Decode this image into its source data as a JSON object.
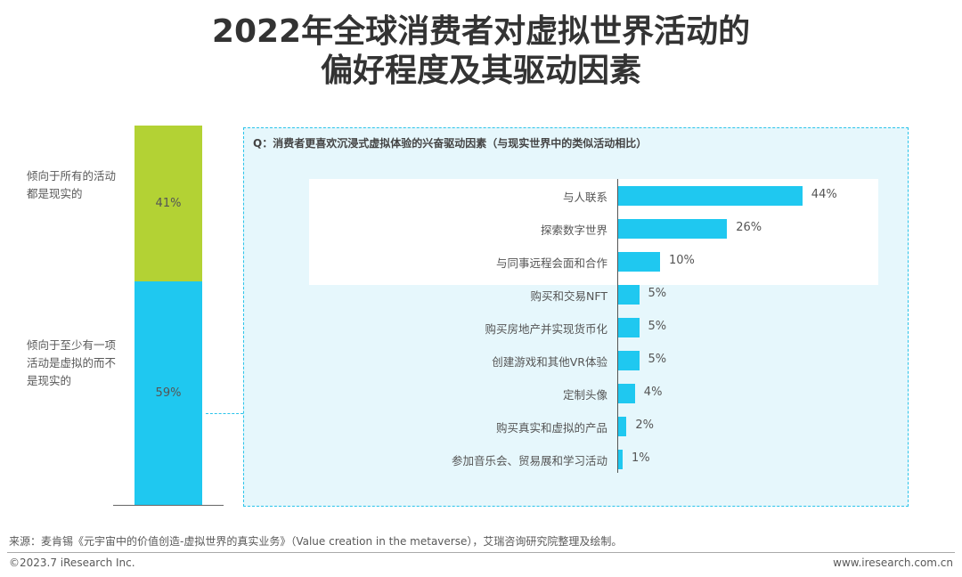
{
  "title_line1": "2022年全球消费者对虚拟世界活动的",
  "title_line2": "偏好程度及其驱动因素",
  "chart_data": [
    {
      "type": "bar",
      "stacked": true,
      "categories": [
        "倾向于所有的活动都是现实的",
        "倾向于至少有一项活动是虚拟的而不是现实的"
      ],
      "values": [
        41,
        59
      ],
      "labels": [
        "41%",
        "59%"
      ],
      "colors": [
        "#b3d234",
        "#1fc8f0"
      ]
    },
    {
      "type": "bar",
      "orientation": "horizontal",
      "title": "Q：消费者更喜欢沉浸式虚拟体验的兴奋驱动因素（与现实世界中的类似活动相比）",
      "categories": [
        "与人联系",
        "探索数字世界",
        "与同事远程会面和合作",
        "购买和交易NFT",
        "购买房地产并实现货币化",
        "创建游戏和其他VR体验",
        "定制头像",
        "购买真实和虚拟的产品",
        "参加音乐会、贸易展和学习活动"
      ],
      "values": [
        44,
        26,
        10,
        5,
        5,
        5,
        4,
        2,
        1
      ],
      "labels": [
        "44%",
        "26%",
        "10%",
        "5%",
        "5%",
        "5%",
        "4%",
        "2%",
        "1%"
      ],
      "highlighted": [
        "与人联系",
        "探索数字世界",
        "与同事远程会面和合作"
      ],
      "color": "#1fc8f0"
    }
  ],
  "footer": {
    "source": "来源：麦肯锡《元宇宙中的价值创造-虚拟世界的真实业务》（Value creation in the metaverse），艾瑞咨询研究院整理及绘制。",
    "copyright": "©2023.7 iResearch Inc.",
    "url": "www.iresearch.com.cn"
  }
}
